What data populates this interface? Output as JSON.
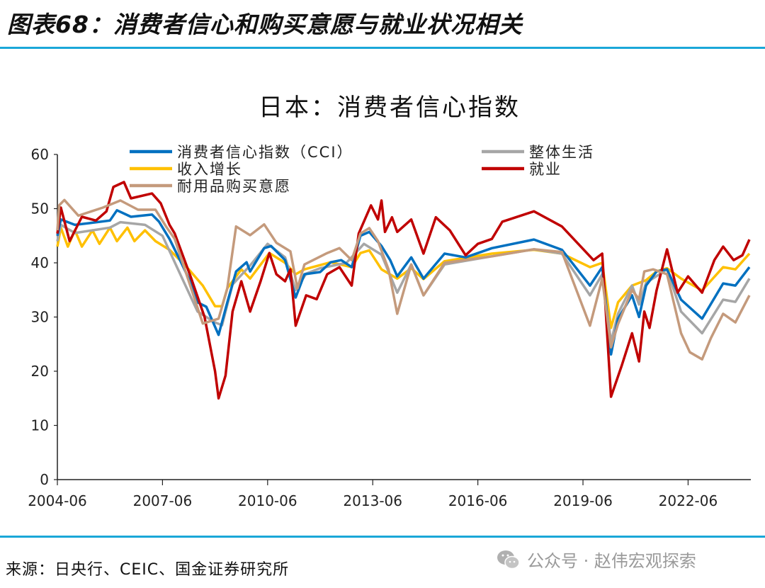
{
  "figure_title": "图表68：消费者信心和购买意愿与就业状况相关",
  "source": "来源：日央行、CEIC、国金证券研究所",
  "watermark": "公众号 · 赵伟宏观探索",
  "chart_data": {
    "type": "line",
    "title": "日本：消费者信心指数",
    "xlabel": "",
    "ylabel": "",
    "ylim": [
      0,
      60
    ],
    "xlim": [
      2004.5,
      2024.25
    ],
    "yticks": [
      0,
      10,
      20,
      30,
      40,
      50,
      60
    ],
    "xticks": [
      {
        "value": 2004.5,
        "label": "2004-06"
      },
      {
        "value": 2007.5,
        "label": "2007-06"
      },
      {
        "value": 2010.5,
        "label": "2010-06"
      },
      {
        "value": 2013.5,
        "label": "2013-06"
      },
      {
        "value": 2016.5,
        "label": "2016-06"
      },
      {
        "value": 2019.5,
        "label": "2019-06"
      },
      {
        "value": 2022.5,
        "label": "2022-06"
      }
    ],
    "grid": false,
    "legend_position": "top",
    "series": [
      {
        "name": "收入增长",
        "color": "#ffc000",
        "points": [
          [
            2004.5,
            43
          ],
          [
            2004.6,
            46.5
          ],
          [
            2004.8,
            43
          ],
          [
            2005,
            46
          ],
          [
            2005.2,
            43
          ],
          [
            2005.5,
            46
          ],
          [
            2005.7,
            43.5
          ],
          [
            2006,
            46.5
          ],
          [
            2006.2,
            44
          ],
          [
            2006.5,
            46.5
          ],
          [
            2006.7,
            44
          ],
          [
            2007,
            46
          ],
          [
            2007.3,
            44
          ],
          [
            2007.7,
            42.4
          ],
          [
            2008,
            40.5
          ],
          [
            2008.25,
            38.8
          ],
          [
            2008.65,
            35.8
          ],
          [
            2009.0,
            32
          ],
          [
            2009.2,
            32
          ],
          [
            2009.35,
            35.3
          ],
          [
            2009.75,
            38.8
          ],
          [
            2010.0,
            37.1
          ],
          [
            2010.55,
            41.8
          ],
          [
            2011.0,
            40
          ],
          [
            2011.3,
            37.9
          ],
          [
            2011.55,
            38.8
          ],
          [
            2012.3,
            40.1
          ],
          [
            2012.9,
            39.2
          ],
          [
            2013.15,
            41.8
          ],
          [
            2013.4,
            42.3
          ],
          [
            2013.75,
            38.8
          ],
          [
            2014.2,
            37.1
          ],
          [
            2014.6,
            39
          ],
          [
            2014.95,
            37
          ],
          [
            2015.55,
            40.3
          ],
          [
            2016.9,
            41.7
          ],
          [
            2018.1,
            42.4
          ],
          [
            2018.9,
            41.7
          ],
          [
            2019.7,
            39.2
          ],
          [
            2020.05,
            40
          ],
          [
            2020.3,
            28
          ],
          [
            2020.5,
            32.7
          ],
          [
            2020.9,
            35.8
          ],
          [
            2021.3,
            36.8
          ],
          [
            2021.6,
            38.4
          ],
          [
            2021.9,
            39
          ],
          [
            2022.3,
            37.1
          ],
          [
            2022.9,
            34.9
          ],
          [
            2023.5,
            39.2
          ],
          [
            2023.85,
            38.8
          ],
          [
            2024.25,
            41.7
          ]
        ]
      },
      {
        "name": "整体生活",
        "color": "#a6a6a6",
        "points": [
          [
            2004.5,
            44
          ],
          [
            2004.6,
            47
          ],
          [
            2005,
            45.5
          ],
          [
            2005.5,
            46
          ],
          [
            2006,
            46.5
          ],
          [
            2006.3,
            47.5
          ],
          [
            2007,
            47
          ],
          [
            2007.5,
            45
          ],
          [
            2008,
            38
          ],
          [
            2008.5,
            31
          ],
          [
            2009.0,
            29
          ],
          [
            2009.2,
            28.5
          ],
          [
            2009.5,
            36
          ],
          [
            2010,
            39.5
          ],
          [
            2010.5,
            43.5
          ],
          [
            2011,
            41
          ],
          [
            2011.3,
            35
          ],
          [
            2011.6,
            38
          ],
          [
            2012,
            39
          ],
          [
            2012.75,
            40
          ],
          [
            2013.25,
            43.5
          ],
          [
            2013.75,
            41.5
          ],
          [
            2014.2,
            34.5
          ],
          [
            2014.6,
            39.7
          ],
          [
            2014.95,
            34
          ],
          [
            2015.55,
            39.7
          ],
          [
            2016.9,
            41.2
          ],
          [
            2018.1,
            42.5
          ],
          [
            2018.9,
            41.7
          ],
          [
            2019.7,
            34
          ],
          [
            2020.05,
            37.9
          ],
          [
            2020.3,
            25.4
          ],
          [
            2020.5,
            30.6
          ],
          [
            2020.9,
            35.8
          ],
          [
            2021.1,
            32.3
          ],
          [
            2021.3,
            36.3
          ],
          [
            2021.9,
            38.8
          ],
          [
            2022.3,
            31
          ],
          [
            2022.9,
            27
          ],
          [
            2023.5,
            33.2
          ],
          [
            2023.85,
            32.8
          ],
          [
            2024.25,
            37.1
          ]
        ]
      },
      {
        "name": "消费者信心指数（CCI）",
        "color": "#0070c0",
        "points": [
          [
            2004.5,
            45
          ],
          [
            2004.6,
            48
          ],
          [
            2005,
            47
          ],
          [
            2005.5,
            47.4
          ],
          [
            2006,
            47.8
          ],
          [
            2006.2,
            49.7
          ],
          [
            2006.6,
            48.5
          ],
          [
            2007.2,
            48.9
          ],
          [
            2007.4,
            47.6
          ],
          [
            2007.7,
            44.4
          ],
          [
            2008,
            40.5
          ],
          [
            2008.25,
            37.1
          ],
          [
            2008.5,
            32.7
          ],
          [
            2008.75,
            31.9
          ],
          [
            2009.1,
            26.7
          ],
          [
            2009.35,
            32.7
          ],
          [
            2009.6,
            38.4
          ],
          [
            2009.9,
            40.1
          ],
          [
            2010.0,
            38.4
          ],
          [
            2010.4,
            42.7
          ],
          [
            2010.6,
            43.1
          ],
          [
            2011.0,
            40.5
          ],
          [
            2011.3,
            33.6
          ],
          [
            2011.55,
            37.9
          ],
          [
            2012.0,
            38.3
          ],
          [
            2012.3,
            40.1
          ],
          [
            2012.6,
            40.5
          ],
          [
            2012.9,
            39.2
          ],
          [
            2013.15,
            45
          ],
          [
            2013.4,
            45.7
          ],
          [
            2013.75,
            43.1
          ],
          [
            2014.0,
            40.5
          ],
          [
            2014.2,
            37.5
          ],
          [
            2014.6,
            41
          ],
          [
            2014.95,
            37.1
          ],
          [
            2015.55,
            41.7
          ],
          [
            2016.15,
            41
          ],
          [
            2016.9,
            42.7
          ],
          [
            2018.1,
            44.3
          ],
          [
            2018.9,
            42.4
          ],
          [
            2019.7,
            35.8
          ],
          [
            2020.05,
            39.2
          ],
          [
            2020.3,
            23.1
          ],
          [
            2020.5,
            29.7
          ],
          [
            2020.9,
            34
          ],
          [
            2021.1,
            30
          ],
          [
            2021.3,
            35.8
          ],
          [
            2021.6,
            38.4
          ],
          [
            2021.9,
            38.8
          ],
          [
            2022.3,
            33.2
          ],
          [
            2022.9,
            29.7
          ],
          [
            2023.5,
            36.2
          ],
          [
            2023.85,
            35.8
          ],
          [
            2024.25,
            39.2
          ]
        ]
      },
      {
        "name": "就业",
        "color": "#c00000",
        "points": [
          [
            2004.5,
            45.4
          ],
          [
            2004.6,
            50.2
          ],
          [
            2004.85,
            44
          ],
          [
            2005.2,
            48.5
          ],
          [
            2005.6,
            47.8
          ],
          [
            2005.9,
            49.5
          ],
          [
            2006.1,
            54
          ],
          [
            2006.4,
            54.9
          ],
          [
            2006.6,
            51.9
          ],
          [
            2007.2,
            52.8
          ],
          [
            2007.45,
            51
          ],
          [
            2007.7,
            47
          ],
          [
            2007.85,
            45.4
          ],
          [
            2008.3,
            37.5
          ],
          [
            2008.7,
            30
          ],
          [
            2009.0,
            20
          ],
          [
            2009.1,
            15
          ],
          [
            2009.3,
            19.2
          ],
          [
            2009.5,
            31
          ],
          [
            2009.75,
            36.6
          ],
          [
            2010.0,
            31
          ],
          [
            2010.3,
            36.6
          ],
          [
            2010.55,
            41.8
          ],
          [
            2010.75,
            37.9
          ],
          [
            2011.0,
            36.6
          ],
          [
            2011.15,
            38.8
          ],
          [
            2011.3,
            28.4
          ],
          [
            2011.6,
            34
          ],
          [
            2011.9,
            33.3
          ],
          [
            2012.2,
            37.9
          ],
          [
            2012.55,
            39.2
          ],
          [
            2012.9,
            35.8
          ],
          [
            2013.1,
            45.4
          ],
          [
            2013.45,
            50.6
          ],
          [
            2013.65,
            48
          ],
          [
            2013.75,
            51.5
          ],
          [
            2013.85,
            45.7
          ],
          [
            2014.05,
            48.4
          ],
          [
            2014.2,
            45.7
          ],
          [
            2014.6,
            48
          ],
          [
            2014.95,
            41.7
          ],
          [
            2015.3,
            48.4
          ],
          [
            2015.7,
            46
          ],
          [
            2016.15,
            41.4
          ],
          [
            2016.5,
            43.5
          ],
          [
            2016.9,
            44.4
          ],
          [
            2017.2,
            47.6
          ],
          [
            2018.1,
            49.5
          ],
          [
            2018.9,
            46.7
          ],
          [
            2019.8,
            40.5
          ],
          [
            2020.05,
            41.7
          ],
          [
            2020.3,
            15.3
          ],
          [
            2020.6,
            20.9
          ],
          [
            2020.9,
            27
          ],
          [
            2021.1,
            21.8
          ],
          [
            2021.25,
            31
          ],
          [
            2021.4,
            28
          ],
          [
            2021.6,
            34.9
          ],
          [
            2021.9,
            42.5
          ],
          [
            2022.2,
            34.5
          ],
          [
            2022.5,
            37.5
          ],
          [
            2022.9,
            34.5
          ],
          [
            2023.25,
            40.5
          ],
          [
            2023.5,
            43
          ],
          [
            2023.8,
            40.5
          ],
          [
            2024.05,
            41.4
          ],
          [
            2024.25,
            44.3
          ]
        ]
      },
      {
        "name": "耐用品购买意愿",
        "color": "#c49a7c",
        "points": [
          [
            2004.5,
            46
          ],
          [
            2004.55,
            50.6
          ],
          [
            2004.7,
            51.6
          ],
          [
            2005.1,
            48.7
          ],
          [
            2005.8,
            50.2
          ],
          [
            2006.3,
            51.5
          ],
          [
            2006.8,
            49.8
          ],
          [
            2007.3,
            49.8
          ],
          [
            2007.6,
            46.7
          ],
          [
            2007.85,
            44.4
          ],
          [
            2008.25,
            36.6
          ],
          [
            2008.65,
            28.8
          ],
          [
            2009.1,
            29.7
          ],
          [
            2009.35,
            35.3
          ],
          [
            2009.6,
            46.7
          ],
          [
            2010.0,
            45.1
          ],
          [
            2010.4,
            47.1
          ],
          [
            2010.75,
            43.7
          ],
          [
            2011.15,
            42.1
          ],
          [
            2011.35,
            35.3
          ],
          [
            2011.55,
            39.7
          ],
          [
            2012.2,
            41.8
          ],
          [
            2012.55,
            42.7
          ],
          [
            2012.9,
            40.5
          ],
          [
            2013.15,
            45.4
          ],
          [
            2013.4,
            46.4
          ],
          [
            2013.65,
            44
          ],
          [
            2013.95,
            38.8
          ],
          [
            2014.2,
            30.6
          ],
          [
            2014.6,
            39.7
          ],
          [
            2014.95,
            34
          ],
          [
            2015.55,
            40
          ],
          [
            2016.9,
            41.2
          ],
          [
            2018.1,
            42.5
          ],
          [
            2018.9,
            42
          ],
          [
            2019.7,
            28.4
          ],
          [
            2020.05,
            37.1
          ],
          [
            2020.3,
            24.4
          ],
          [
            2020.5,
            28.7
          ],
          [
            2020.9,
            35
          ],
          [
            2021.1,
            33.3
          ],
          [
            2021.25,
            38.4
          ],
          [
            2021.5,
            38.8
          ],
          [
            2021.9,
            37.9
          ],
          [
            2022.3,
            27
          ],
          [
            2022.55,
            23.5
          ],
          [
            2022.9,
            22.2
          ],
          [
            2023.15,
            26.1
          ],
          [
            2023.5,
            30.6
          ],
          [
            2023.85,
            29
          ],
          [
            2024.25,
            34
          ]
        ]
      }
    ],
    "legend": [
      {
        "label": "消费者信心指数（CCI）",
        "color": "#0070c0"
      },
      {
        "label": "整体生活",
        "color": "#a6a6a6"
      },
      {
        "label": "收入增长",
        "color": "#ffc000"
      },
      {
        "label": "就业",
        "color": "#c00000"
      },
      {
        "label": "耐用品购买意愿",
        "color": "#c49a7c"
      }
    ]
  }
}
